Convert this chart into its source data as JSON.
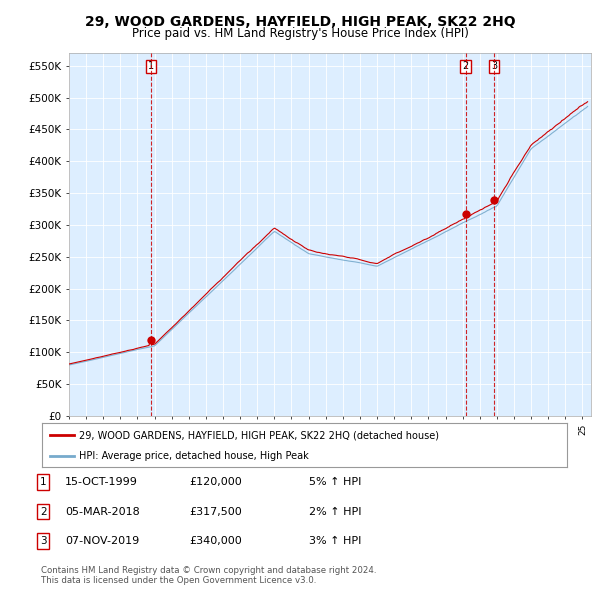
{
  "title": "29, WOOD GARDENS, HAYFIELD, HIGH PEAK, SK22 2HQ",
  "subtitle": "Price paid vs. HM Land Registry's House Price Index (HPI)",
  "ylabel_ticks": [
    "£0",
    "£50K",
    "£100K",
    "£150K",
    "£200K",
    "£250K",
    "£300K",
    "£350K",
    "£400K",
    "£450K",
    "£500K",
    "£550K"
  ],
  "ytick_values": [
    0,
    50000,
    100000,
    150000,
    200000,
    250000,
    300000,
    350000,
    400000,
    450000,
    500000,
    550000
  ],
  "ylim": [
    0,
    570000
  ],
  "xlim_start": 1995.0,
  "xlim_end": 2025.5,
  "sale_dates": [
    1999.79,
    2018.17,
    2019.85
  ],
  "sale_prices": [
    120000,
    317500,
    340000
  ],
  "sale_labels": [
    "1",
    "2",
    "3"
  ],
  "red_line_color": "#cc0000",
  "blue_line_color": "#77aacc",
  "marker_color": "#cc0000",
  "vline_color": "#cc0000",
  "background_color": "#ddeeff",
  "grid_color": "#ffffff",
  "legend_label_red": "29, WOOD GARDENS, HAYFIELD, HIGH PEAK, SK22 2HQ (detached house)",
  "legend_label_blue": "HPI: Average price, detached house, High Peak",
  "table_entries": [
    {
      "label": "1",
      "date": "15-OCT-1999",
      "price": "£120,000",
      "hpi": "5% ↑ HPI"
    },
    {
      "label": "2",
      "date": "05-MAR-2018",
      "price": "£317,500",
      "hpi": "2% ↑ HPI"
    },
    {
      "label": "3",
      "date": "07-NOV-2019",
      "price": "£340,000",
      "hpi": "3% ↑ HPI"
    }
  ],
  "footer": "Contains HM Land Registry data © Crown copyright and database right 2024.\nThis data is licensed under the Open Government Licence v3.0.",
  "title_fontsize": 10,
  "subtitle_fontsize": 8.5,
  "tick_fontsize": 7.5,
  "label_fontsize": 8
}
